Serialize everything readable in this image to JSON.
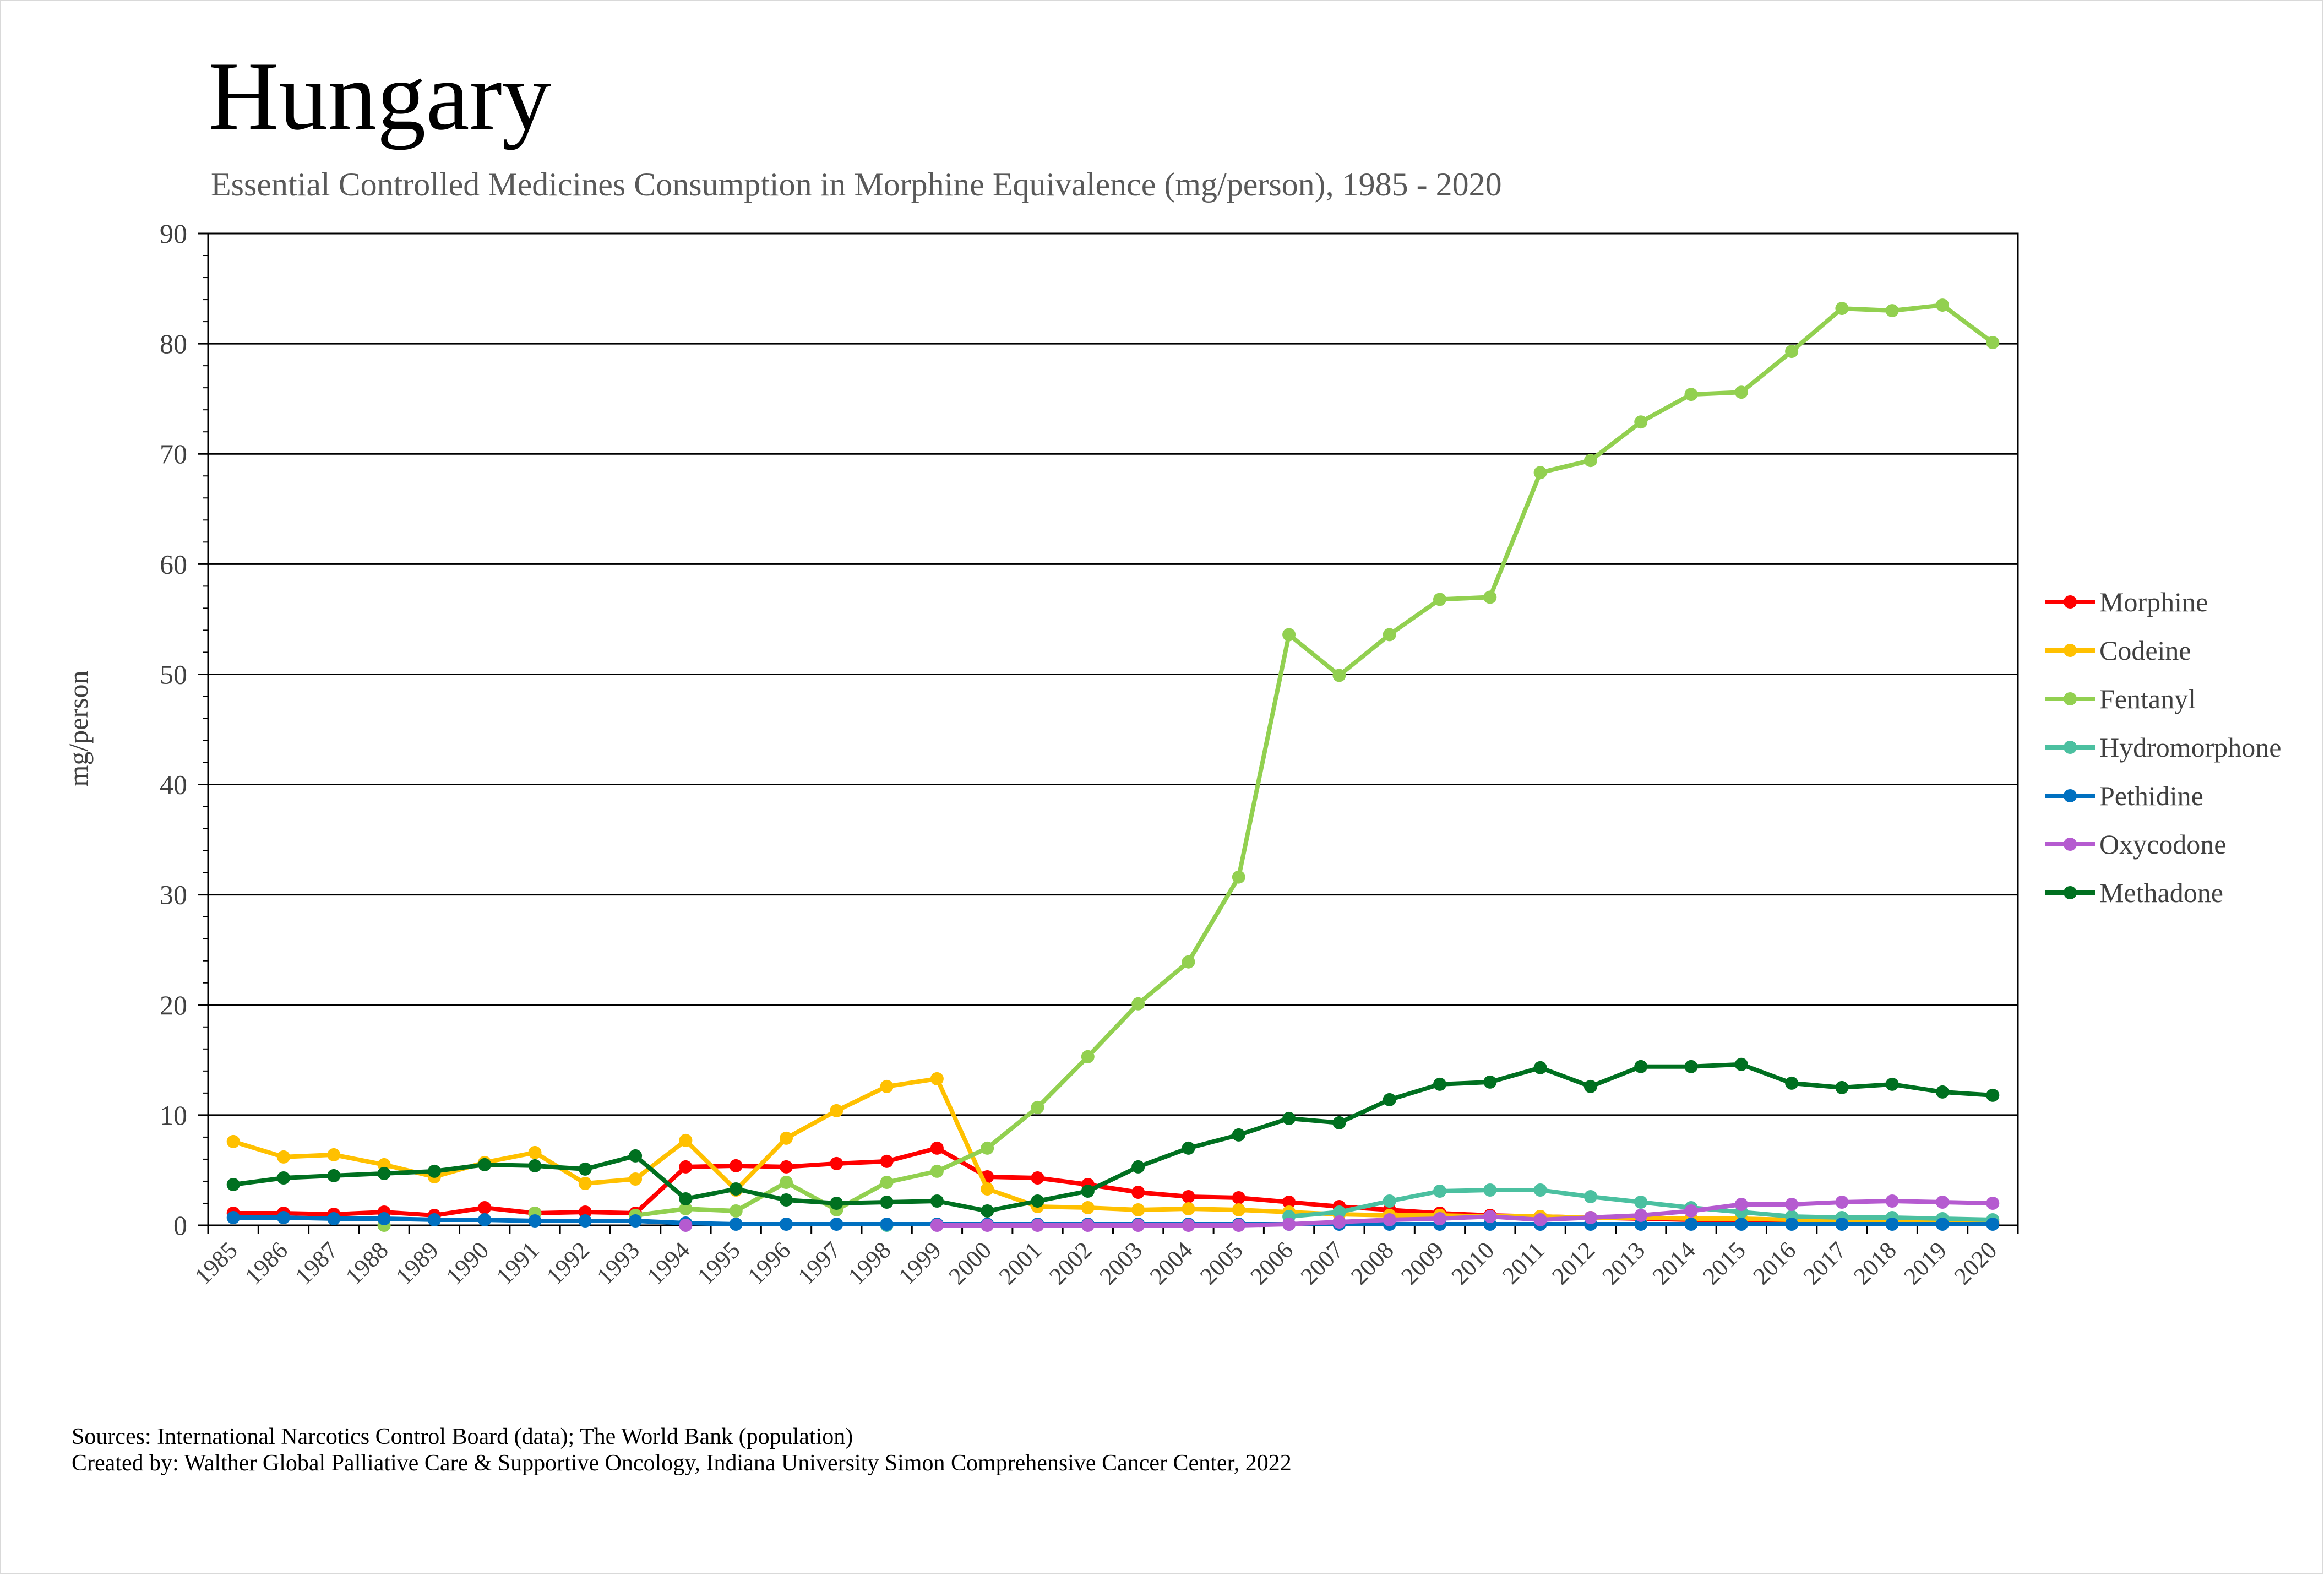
{
  "title": "Hungary",
  "subtitle": "Essential Controlled Medicines Consumption in Morphine Equivalence (mg/person), 1985 - 2020",
  "footer": {
    "line1": "Sources: International Narcotics Control Board (data); The World Bank (population)",
    "line2": "Created by: Walther Global Palliative Care & Supportive Oncology, Indiana University Simon Comprehensive Cancer Center, 2022"
  },
  "chart_data": {
    "type": "line",
    "title": "Hungary",
    "subtitle": "Essential Controlled Medicines Consumption in Morphine Equivalence (mg/person), 1985 - 2020",
    "xlabel": "",
    "ylabel": "mg/person",
    "ylim": [
      0,
      90
    ],
    "yticks": [
      0,
      10,
      20,
      30,
      40,
      50,
      60,
      70,
      80,
      90
    ],
    "grid": "horizontal major gridlines",
    "legend": "right",
    "x": [
      "1985",
      "1986",
      "1987",
      "1988",
      "1989",
      "1990",
      "1991",
      "1992",
      "1993",
      "1994",
      "1995",
      "1996",
      "1997",
      "1998",
      "1999",
      "2000",
      "2001",
      "2002",
      "2003",
      "2004",
      "2005",
      "2006",
      "2007",
      "2008",
      "2009",
      "2010",
      "2011",
      "2012",
      "2013",
      "2014",
      "2015",
      "2016",
      "2017",
      "2018",
      "2019",
      "2020"
    ],
    "series": [
      {
        "name": "Morphine",
        "color": "#ff0000",
        "values": [
          1.1,
          1.1,
          1.0,
          1.2,
          0.9,
          1.6,
          1.1,
          1.2,
          1.1,
          5.3,
          5.4,
          5.3,
          5.6,
          5.8,
          7.0,
          4.4,
          4.3,
          3.7,
          3.0,
          2.6,
          2.5,
          2.1,
          1.7,
          1.4,
          1.1,
          0.9,
          0.8,
          0.7,
          0.6,
          0.5,
          0.4,
          0.4,
          0.3,
          0.3,
          0.2,
          0.2
        ]
      },
      {
        "name": "Codeine",
        "color": "#ffc000",
        "values": [
          7.6,
          6.2,
          6.4,
          5.5,
          4.4,
          5.7,
          6.6,
          3.8,
          4.2,
          7.7,
          3.2,
          7.9,
          10.4,
          12.6,
          13.3,
          3.3,
          1.7,
          1.6,
          1.4,
          1.5,
          1.4,
          1.2,
          1.0,
          0.9,
          0.9,
          0.8,
          0.8,
          0.7,
          0.7,
          0.6,
          0.6,
          0.5,
          0.5,
          0.4,
          0.4,
          0.3
        ]
      },
      {
        "name": "Fentanyl",
        "color": "#92d050",
        "values": [
          null,
          null,
          null,
          0.0,
          null,
          null,
          1.1,
          null,
          0.9,
          1.5,
          1.3,
          3.9,
          1.4,
          3.9,
          4.9,
          7.0,
          10.7,
          15.3,
          20.1,
          23.9,
          31.6,
          53.6,
          49.9,
          53.6,
          56.8,
          57.0,
          68.3,
          69.4,
          72.9,
          75.4,
          75.6,
          79.3,
          83.2,
          83.0,
          83.5,
          80.1
        ]
      },
      {
        "name": "Hydromorphone",
        "color": "#4bc0a0",
        "values": [
          null,
          null,
          null,
          null,
          null,
          null,
          null,
          null,
          null,
          null,
          null,
          null,
          null,
          0.0,
          null,
          null,
          null,
          null,
          null,
          null,
          null,
          0.8,
          1.2,
          2.2,
          3.1,
          3.2,
          3.2,
          2.6,
          2.1,
          1.6,
          1.2,
          0.8,
          0.7,
          0.7,
          0.6,
          0.5
        ]
      },
      {
        "name": "Pethidine",
        "color": "#0070c0",
        "values": [
          0.7,
          0.7,
          0.6,
          0.6,
          0.5,
          0.5,
          0.4,
          0.4,
          0.4,
          0.2,
          0.1,
          0.1,
          0.1,
          0.1,
          0.1,
          0.1,
          0.1,
          0.1,
          0.1,
          0.1,
          0.1,
          0.1,
          0.1,
          0.1,
          0.1,
          0.1,
          0.1,
          0.1,
          0.1,
          0.1,
          0.1,
          0.1,
          0.1,
          0.1,
          0.1,
          0.1
        ]
      },
      {
        "name": "Oxycodone",
        "color": "#b55bd0",
        "values": [
          null,
          null,
          null,
          null,
          null,
          null,
          null,
          null,
          null,
          0.0,
          null,
          null,
          null,
          null,
          0.0,
          0.0,
          0.0,
          0.0,
          0.0,
          0.0,
          0.0,
          0.1,
          0.3,
          0.5,
          0.6,
          0.8,
          0.5,
          0.7,
          0.9,
          1.3,
          1.9,
          1.9,
          2.1,
          2.2,
          2.1,
          2.0
        ]
      },
      {
        "name": "Methadone",
        "color": "#007020",
        "values": [
          3.7,
          4.3,
          4.5,
          4.7,
          4.9,
          5.5,
          5.4,
          5.1,
          6.3,
          2.4,
          3.3,
          2.3,
          2.0,
          2.1,
          2.2,
          1.3,
          2.2,
          3.1,
          5.3,
          7.0,
          8.2,
          9.7,
          9.3,
          11.4,
          12.8,
          13.0,
          14.3,
          12.6,
          14.4,
          14.4,
          14.6,
          12.9,
          12.5,
          12.8,
          12.1,
          11.8
        ]
      }
    ]
  }
}
